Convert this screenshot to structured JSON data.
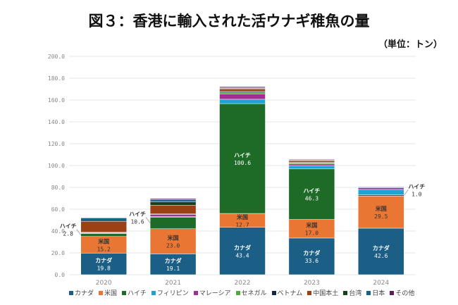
{
  "chart_data": {
    "type": "bar",
    "stacked": true,
    "title": "図３：香港に輸入された活ウナギ稚魚の量",
    "unit_label": "（単位：トン）",
    "categories": [
      "2020",
      "2021",
      "2022",
      "2023",
      "2024"
    ],
    "ylim": [
      0,
      200
    ],
    "yticks": [
      "0.0",
      "20.0",
      "40.0",
      "60.0",
      "80.0",
      "100.0",
      "120.0",
      "140.0",
      "160.0",
      "180.0",
      "200.0"
    ],
    "grid": true,
    "legend_position": "bottom",
    "series": [
      {
        "name": "カナダ",
        "color": "#1b5f87",
        "values": [
          19.8,
          19.1,
          43.4,
          33.6,
          42.6
        ],
        "labels": [
          "19.8",
          "19.1",
          "43.4",
          "33.6",
          "42.6"
        ]
      },
      {
        "name": "米国",
        "color": "#ea7634",
        "values": [
          15.2,
          23.0,
          12.7,
          17.0,
          29.5
        ],
        "labels": [
          "15.2",
          "23.0",
          "12.7",
          "17.0",
          "29.5"
        ]
      },
      {
        "name": "ハイチ",
        "color": "#1e6b27",
        "values": [
          2.8,
          10.6,
          100.6,
          46.3,
          1.0
        ],
        "labels": [
          "2.8",
          "10.6",
          "100.6",
          "46.3",
          "1.0"
        ]
      },
      {
        "name": "フィリピン",
        "color": "#1ea2d8",
        "values": [
          0.3,
          0.5,
          4.0,
          3.0,
          5.0
        ]
      },
      {
        "name": "マレーシア",
        "color": "#a0308f",
        "values": [
          0.5,
          2.0,
          5.0,
          1.5,
          1.5
        ]
      },
      {
        "name": "セネガル",
        "color": "#52a838",
        "values": [
          0,
          0,
          1.5,
          1.0,
          0
        ]
      },
      {
        "name": "ベトナム",
        "color": "#0f2a42",
        "values": [
          0.3,
          0.5,
          1.0,
          0.5,
          0
        ]
      },
      {
        "name": "中国本土",
        "color": "#9b4115",
        "values": [
          10.0,
          8.0,
          2.0,
          1.5,
          0
        ]
      },
      {
        "name": "台湾",
        "color": "#17401c",
        "values": [
          0,
          3.0,
          0.5,
          0.5,
          0
        ]
      },
      {
        "name": "日本",
        "color": "#17628a",
        "values": [
          3.0,
          2.0,
          0.5,
          0.5,
          0.5
        ]
      },
      {
        "name": "その他",
        "color": "#5e1e5c",
        "values": [
          0.5,
          1.0,
          1.0,
          0.5,
          0.5
        ]
      }
    ]
  }
}
